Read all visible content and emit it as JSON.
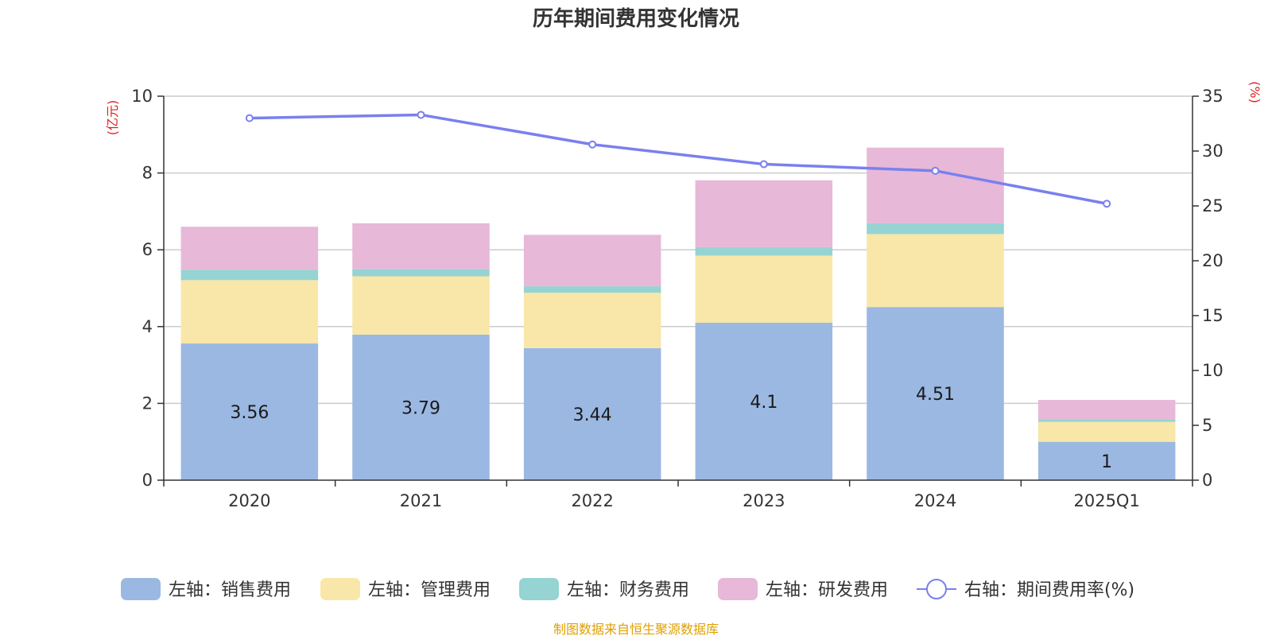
{
  "chart_data": {
    "type": "bar",
    "stacked": true,
    "title": "历年期间费用变化情况",
    "categories": [
      "2020",
      "2021",
      "2022",
      "2023",
      "2024",
      "2025Q1"
    ],
    "left_axis": {
      "unit": "(亿元)",
      "ylim": [
        0,
        10
      ],
      "ticks": [
        "0",
        "2",
        "4",
        "6",
        "8",
        "10"
      ]
    },
    "right_axis": {
      "unit": "(%)",
      "ylim": [
        0,
        35
      ],
      "ticks": [
        "0",
        "5",
        "10",
        "15",
        "20",
        "25",
        "30",
        "35"
      ]
    },
    "series": [
      {
        "name": "左轴：销售费用",
        "axis": "left",
        "type": "bar",
        "color": "#9bb8e2",
        "values": [
          3.56,
          3.79,
          3.44,
          4.1,
          4.51,
          1
        ],
        "labels": [
          "3.56",
          "3.79",
          "3.44",
          "4.1",
          "4.51",
          "1"
        ]
      },
      {
        "name": "左轴：管理费用",
        "axis": "left",
        "type": "bar",
        "color": "#f8e7a8",
        "values": [
          1.65,
          1.52,
          1.44,
          1.75,
          1.9,
          0.52
        ]
      },
      {
        "name": "左轴：财务费用",
        "axis": "left",
        "type": "bar",
        "color": "#96d3d3",
        "values": [
          0.27,
          0.19,
          0.17,
          0.22,
          0.28,
          0.07
        ]
      },
      {
        "name": "左轴：研发费用",
        "axis": "left",
        "type": "bar",
        "color": "#e7b8d8",
        "values": [
          1.12,
          1.19,
          1.34,
          1.74,
          1.97,
          0.5
        ]
      },
      {
        "name": "右轴：期间费用率(%)",
        "axis": "right",
        "type": "line",
        "color": "#7a80ee",
        "values": [
          33,
          33.3,
          30.6,
          28.8,
          28.2,
          25.2
        ]
      }
    ],
    "legend_position": "bottom",
    "grid": true
  },
  "source": {
    "text": "制图数据来自恒生聚源数据库",
    "color": "#e0a000"
  },
  "colors": {
    "axis_unit": "#e02020",
    "grid": "#cccccc",
    "axis_line": "#333333"
  }
}
